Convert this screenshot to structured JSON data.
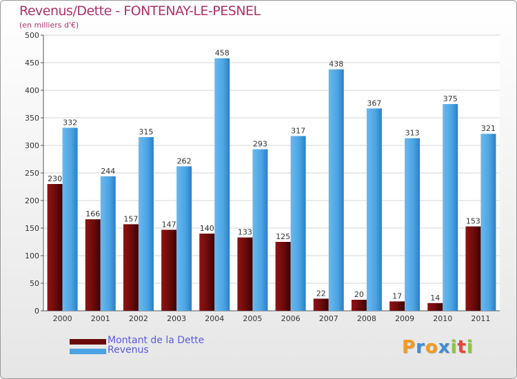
{
  "chart_data": {
    "type": "bar",
    "title": "Revenus/Dette - FONTENAY-LE-PESNEL",
    "subtitle": "(en milliers d'€)",
    "categories": [
      "2000",
      "2001",
      "2002",
      "2003",
      "2004",
      "2005",
      "2006",
      "2007",
      "2008",
      "2009",
      "2010",
      "2011"
    ],
    "series": [
      {
        "name": "Montant de la Dette",
        "color": "#6b0a0a",
        "values": [
          230,
          166,
          157,
          147,
          140,
          133,
          125,
          22,
          20,
          17,
          14,
          153
        ]
      },
      {
        "name": "Revenus",
        "color": "#4aa3e3",
        "values": [
          332,
          244,
          315,
          262,
          458,
          293,
          317,
          438,
          367,
          313,
          375,
          321
        ]
      }
    ],
    "ylim": [
      0,
      500
    ],
    "yticks": [
      0,
      50,
      100,
      150,
      200,
      250,
      300,
      350,
      400,
      450,
      500
    ],
    "grid": true,
    "legend_position": "bottom-left"
  },
  "legend": [
    {
      "label": "Montant de la Dette",
      "color": "#6b0a0a"
    },
    {
      "label": "Revenus",
      "color": "#4aa3e3"
    }
  ],
  "logo": {
    "letters": [
      "P",
      "r",
      "o",
      "x",
      "i",
      "t",
      "i"
    ],
    "colors": [
      "#f39a1e",
      "#3c8fd6",
      "#f39a1e",
      "#3c8fd6",
      "#8cc63f",
      "#e8463c",
      "#8cc63f"
    ]
  }
}
